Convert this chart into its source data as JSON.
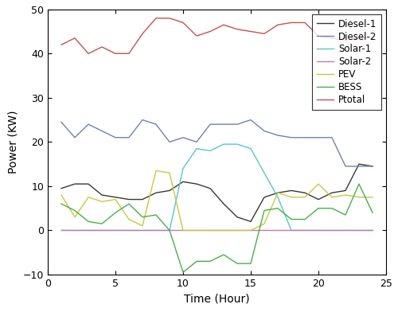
{
  "hours": [
    1,
    2,
    3,
    4,
    5,
    6,
    7,
    8,
    9,
    10,
    11,
    12,
    13,
    14,
    15,
    16,
    17,
    18,
    19,
    20,
    21,
    22,
    23,
    24
  ],
  "diesel1": [
    9.5,
    10.5,
    10.5,
    8.0,
    7.5,
    7.0,
    7.0,
    8.5,
    9.0,
    11.0,
    10.5,
    9.5,
    6.0,
    3.0,
    2.0,
    7.5,
    8.5,
    9.0,
    8.5,
    7.0,
    8.5,
    9.0,
    15.0,
    14.5
  ],
  "diesel2": [
    24.5,
    21.0,
    24.0,
    22.5,
    21.0,
    21.0,
    25.0,
    24.0,
    20.0,
    21.0,
    20.0,
    24.0,
    24.0,
    24.0,
    25.0,
    22.5,
    21.5,
    21.0,
    21.0,
    21.0,
    21.0,
    14.5,
    14.5,
    14.5
  ],
  "solar1": [
    0,
    0,
    0,
    0,
    0,
    0,
    0,
    0,
    0,
    14.0,
    18.5,
    18.0,
    19.5,
    19.5,
    18.5,
    13.0,
    7.5,
    0,
    0,
    0,
    0,
    0,
    0,
    0
  ],
  "solar2": [
    0,
    0,
    0,
    0,
    0,
    0,
    0,
    0,
    0,
    0,
    0,
    0,
    0,
    0,
    0,
    0,
    0,
    0,
    0,
    0,
    0,
    0,
    0,
    0
  ],
  "pev": [
    8.0,
    3.0,
    7.5,
    6.5,
    7.0,
    2.5,
    1.0,
    13.5,
    13.0,
    0.0,
    0.0,
    0.0,
    0.0,
    0.0,
    0.0,
    1.5,
    8.5,
    7.5,
    7.5,
    10.5,
    7.5,
    8.0,
    7.5,
    7.5
  ],
  "bess": [
    6.0,
    4.5,
    2.0,
    1.5,
    4.0,
    6.0,
    3.0,
    3.5,
    0.0,
    -9.5,
    -7.0,
    -7.0,
    -5.5,
    -7.5,
    -7.5,
    4.5,
    5.0,
    2.5,
    2.5,
    5.0,
    5.0,
    3.5,
    10.5,
    4.0
  ],
  "ptotal": [
    42.0,
    43.5,
    40.0,
    41.5,
    40.0,
    40.0,
    44.5,
    48.0,
    48.0,
    47.0,
    44.0,
    45.0,
    46.5,
    45.5,
    45.0,
    44.5,
    46.5,
    47.0,
    47.0,
    44.0,
    43.5,
    43.0,
    43.5,
    43.5
  ],
  "colors": {
    "diesel1": "#383838",
    "diesel2": "#7080b8",
    "solar1": "#56c8c8",
    "solar2": "#c878b0",
    "pev": "#c8c840",
    "bess": "#48b048",
    "ptotal": "#c85050"
  },
  "xlabel": "Time (Hour)",
  "ylabel": "Power (KW)",
  "xlim": [
    0,
    25
  ],
  "ylim": [
    -10,
    50
  ],
  "xticks": [
    0,
    5,
    10,
    15,
    20,
    25
  ],
  "yticks": [
    -10,
    0,
    10,
    20,
    30,
    40,
    50
  ],
  "legend_labels": [
    "Diesel-1",
    "Diesel-2",
    "Solar-1",
    "Solar-2",
    "PEV",
    "BESS",
    "Ptotal"
  ]
}
